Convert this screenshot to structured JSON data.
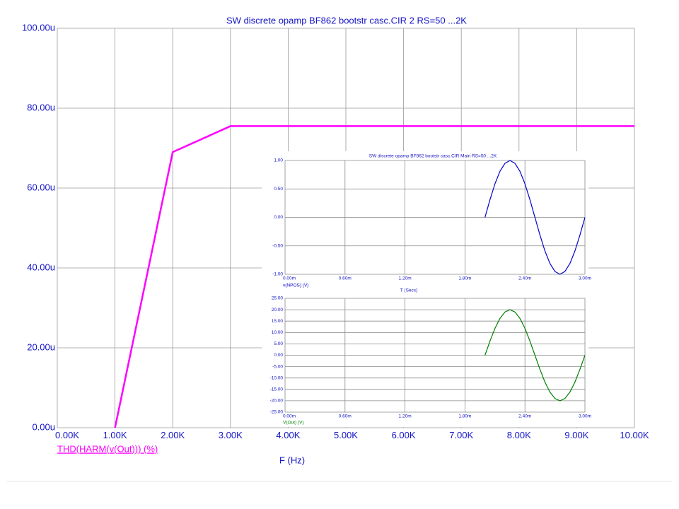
{
  "chart_data": [
    {
      "type": "line",
      "title": "SW discrete opamp BF862 bootstr casc.CIR 2 RS=50 ...2K",
      "xlabel": "F (Hz)",
      "x": [
        1000,
        2000,
        3000,
        4000,
        5000,
        6000,
        7000,
        8000,
        9000,
        10000
      ],
      "series": [
        {
          "name": "THD(HARM(v(Out))) (%)",
          "color": "#ff00ff",
          "values": [
            0,
            69,
            75.5,
            75.5,
            75.5,
            75.5,
            75.5,
            75.5,
            75.5,
            75.5
          ]
        }
      ],
      "xlim": [
        0,
        10000
      ],
      "ylim": [
        0,
        100
      ],
      "xticks": [
        {
          "value": 0,
          "label": "0.00K"
        },
        {
          "value": 1000,
          "label": "1.00K"
        },
        {
          "value": 2000,
          "label": "2.00K"
        },
        {
          "value": 3000,
          "label": "3.00K"
        },
        {
          "value": 4000,
          "label": "4.00K"
        },
        {
          "value": 5000,
          "label": "5.00K"
        },
        {
          "value": 6000,
          "label": "6.00K"
        },
        {
          "value": 7000,
          "label": "7.00K"
        },
        {
          "value": 8000,
          "label": "8.00K"
        },
        {
          "value": 9000,
          "label": "9.00K"
        },
        {
          "value": 10000,
          "label": "10.00K"
        }
      ],
      "yticks": [
        {
          "value": 0,
          "label": "0.00u"
        },
        {
          "value": 20,
          "label": "20.00u"
        },
        {
          "value": 40,
          "label": "40.00u"
        },
        {
          "value": 60,
          "label": "60.00u"
        },
        {
          "value": 80,
          "label": "80.00u"
        },
        {
          "value": 100,
          "label": "100.00u"
        }
      ],
      "grid": true
    },
    {
      "type": "line",
      "title": "SW discrete opamp BF862 bootstr casc.CIR Main RS=50 ...2K",
      "xlabel": "T (Secs)",
      "x": [
        2.0,
        2.05,
        2.1,
        2.15,
        2.2,
        2.25,
        2.3,
        2.35,
        2.4,
        2.45,
        2.5,
        2.55,
        2.6,
        2.65,
        2.7,
        2.75,
        2.8,
        2.85,
        2.9,
        2.95,
        3.0
      ],
      "series": [
        {
          "name": "v(NPOS) (V)",
          "color": "#0000cc",
          "values": [
            0,
            0.31,
            0.59,
            0.81,
            0.95,
            1.0,
            0.95,
            0.81,
            0.59,
            0.31,
            0,
            -0.31,
            -0.59,
            -0.81,
            -0.95,
            -1.0,
            -0.95,
            -0.81,
            -0.59,
            -0.31,
            0
          ]
        }
      ],
      "xlim": [
        0,
        3
      ],
      "ylim": [
        -1,
        1
      ],
      "xticks": [
        {
          "value": 0,
          "label": "0.00m"
        },
        {
          "value": 0.6,
          "label": "0.60m"
        },
        {
          "value": 1.2,
          "label": "1.20m"
        },
        {
          "value": 1.8,
          "label": "1.80m"
        },
        {
          "value": 2.4,
          "label": "2.40m"
        },
        {
          "value": 3,
          "label": "3.00m"
        }
      ],
      "yticks": [
        {
          "value": -1,
          "label": "-1.00"
        },
        {
          "value": -0.5,
          "label": "-0.50"
        },
        {
          "value": 0,
          "label": "0.00"
        },
        {
          "value": 0.5,
          "label": "0.50"
        },
        {
          "value": 1,
          "label": "1.00"
        }
      ],
      "grid": true
    },
    {
      "type": "line",
      "x": [
        2.0,
        2.05,
        2.1,
        2.15,
        2.2,
        2.25,
        2.3,
        2.35,
        2.4,
        2.45,
        2.5,
        2.55,
        2.6,
        2.65,
        2.7,
        2.75,
        2.8,
        2.85,
        2.9,
        2.95,
        3.0
      ],
      "series": [
        {
          "name": "V(Out) (V)",
          "color": "#008000",
          "values": [
            0,
            6.2,
            11.8,
            16.2,
            19.0,
            20.0,
            19.0,
            16.2,
            11.8,
            6.2,
            0,
            -6.2,
            -11.8,
            -16.2,
            -19.0,
            -20.0,
            -19.0,
            -16.2,
            -11.8,
            -6.2,
            0
          ]
        }
      ],
      "xlim": [
        0,
        3
      ],
      "ylim": [
        -25,
        25
      ],
      "xticks": [
        {
          "value": 0,
          "label": "0.00m"
        },
        {
          "value": 0.6,
          "label": "0.60m"
        },
        {
          "value": 1.2,
          "label": "1.20m"
        },
        {
          "value": 1.8,
          "label": "1.80m"
        },
        {
          "value": 2.4,
          "label": "2.40m"
        },
        {
          "value": 3,
          "label": "3.00m"
        }
      ],
      "yticks": [
        {
          "value": -25,
          "label": "-25.00"
        },
        {
          "value": -20,
          "label": "-20.00"
        },
        {
          "value": -15,
          "label": "-15.00"
        },
        {
          "value": -10,
          "label": "-10.00"
        },
        {
          "value": -5,
          "label": "-5.00"
        },
        {
          "value": 0,
          "label": "0.00"
        },
        {
          "value": 5,
          "label": "5.00"
        },
        {
          "value": 10,
          "label": "10.00"
        },
        {
          "value": 15,
          "label": "15.00"
        },
        {
          "value": 20,
          "label": "20.00"
        },
        {
          "value": 25,
          "label": "25.00"
        }
      ],
      "grid": true
    }
  ]
}
